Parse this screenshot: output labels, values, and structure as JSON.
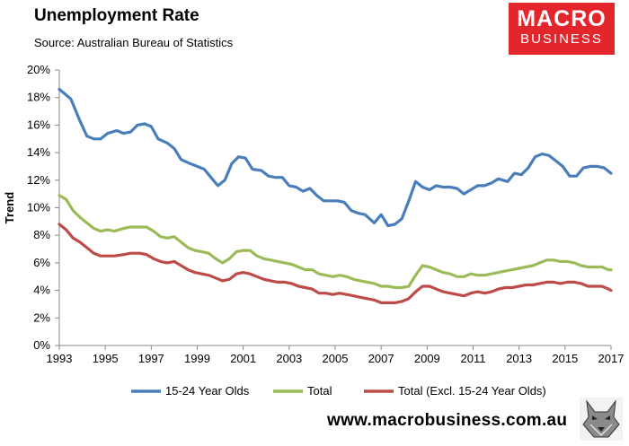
{
  "header": {
    "title": "Unemployment Rate",
    "source": "Source: Australian Bureau of Statistics"
  },
  "logo": {
    "line1": "MACRO",
    "line2": "BUSINESS"
  },
  "footer": {
    "url": "www.macrobusiness.com.au"
  },
  "colors": {
    "youth": "#4a7ebb",
    "total": "#9bbb59",
    "excl": "#be4b48",
    "logo_bg": "#e3262c"
  },
  "icons": {
    "mascot": "wolf-icon"
  },
  "chart_data": {
    "type": "line",
    "title": "Unemployment Rate",
    "ylabel": "Trend",
    "xlabel": "",
    "xlim": [
      1993,
      2017
    ],
    "ylim": [
      0,
      20
    ],
    "x_ticks": [
      "1993",
      "1995",
      "1997",
      "1999",
      "2001",
      "2003",
      "2005",
      "2007",
      "2009",
      "2011",
      "2013",
      "2015",
      "2017"
    ],
    "y_ticks": [
      "0%",
      "2%",
      "4%",
      "6%",
      "8%",
      "10%",
      "12%",
      "14%",
      "16%",
      "18%",
      "20%"
    ],
    "grid": false,
    "legend_position": "bottom",
    "series": [
      {
        "name": "15-24 Year Olds",
        "color": "#4a7ebb",
        "points": [
          [
            1993.0,
            18.6
          ],
          [
            1993.5,
            17.9
          ],
          [
            1993.9,
            16.3
          ],
          [
            1994.2,
            15.2
          ],
          [
            1994.5,
            15.0
          ],
          [
            1994.8,
            15.0
          ],
          [
            1995.1,
            15.4
          ],
          [
            1995.5,
            15.6
          ],
          [
            1995.8,
            15.4
          ],
          [
            1996.1,
            15.5
          ],
          [
            1996.4,
            16.0
          ],
          [
            1996.7,
            16.1
          ],
          [
            1997.0,
            15.9
          ],
          [
            1997.3,
            15.0
          ],
          [
            1997.7,
            14.7
          ],
          [
            1998.0,
            14.3
          ],
          [
            1998.3,
            13.5
          ],
          [
            1998.7,
            13.2
          ],
          [
            1999.0,
            13.0
          ],
          [
            1999.3,
            12.8
          ],
          [
            1999.6,
            12.2
          ],
          [
            1999.9,
            11.6
          ],
          [
            2000.2,
            12.0
          ],
          [
            2000.5,
            13.2
          ],
          [
            2000.8,
            13.7
          ],
          [
            2001.1,
            13.6
          ],
          [
            2001.4,
            12.8
          ],
          [
            2001.8,
            12.7
          ],
          [
            2002.1,
            12.3
          ],
          [
            2002.4,
            12.2
          ],
          [
            2002.7,
            12.2
          ],
          [
            2003.0,
            11.6
          ],
          [
            2003.3,
            11.5
          ],
          [
            2003.6,
            11.2
          ],
          [
            2003.9,
            11.4
          ],
          [
            2004.2,
            10.9
          ],
          [
            2004.5,
            10.5
          ],
          [
            2004.8,
            10.5
          ],
          [
            2005.1,
            10.5
          ],
          [
            2005.4,
            10.4
          ],
          [
            2005.7,
            9.8
          ],
          [
            2006.0,
            9.6
          ],
          [
            2006.3,
            9.5
          ],
          [
            2006.7,
            8.9
          ],
          [
            2007.0,
            9.5
          ],
          [
            2007.3,
            8.7
          ],
          [
            2007.6,
            8.8
          ],
          [
            2007.9,
            9.2
          ],
          [
            2008.2,
            10.5
          ],
          [
            2008.5,
            11.9
          ],
          [
            2008.8,
            11.5
          ],
          [
            2009.1,
            11.3
          ],
          [
            2009.4,
            11.6
          ],
          [
            2009.7,
            11.5
          ],
          [
            2010.0,
            11.5
          ],
          [
            2010.3,
            11.4
          ],
          [
            2010.6,
            11.0
          ],
          [
            2010.9,
            11.3
          ],
          [
            2011.2,
            11.6
          ],
          [
            2011.5,
            11.6
          ],
          [
            2011.8,
            11.8
          ],
          [
            2012.1,
            12.1
          ],
          [
            2012.5,
            11.9
          ],
          [
            2012.8,
            12.5
          ],
          [
            2013.1,
            12.4
          ],
          [
            2013.4,
            12.9
          ],
          [
            2013.7,
            13.7
          ],
          [
            2014.0,
            13.9
          ],
          [
            2014.3,
            13.8
          ],
          [
            2014.6,
            13.4
          ],
          [
            2014.9,
            13.0
          ],
          [
            2015.2,
            12.3
          ],
          [
            2015.5,
            12.3
          ],
          [
            2015.8,
            12.9
          ],
          [
            2016.1,
            13.0
          ],
          [
            2016.4,
            13.0
          ],
          [
            2016.7,
            12.9
          ],
          [
            2017.0,
            12.5
          ]
        ]
      },
      {
        "name": "Total",
        "color": "#9bbb59",
        "points": [
          [
            1993.0,
            10.9
          ],
          [
            1993.3,
            10.6
          ],
          [
            1993.6,
            9.8
          ],
          [
            1993.9,
            9.3
          ],
          [
            1994.2,
            8.9
          ],
          [
            1994.5,
            8.5
          ],
          [
            1994.8,
            8.3
          ],
          [
            1995.1,
            8.4
          ],
          [
            1995.4,
            8.3
          ],
          [
            1995.8,
            8.5
          ],
          [
            1996.1,
            8.6
          ],
          [
            1996.5,
            8.6
          ],
          [
            1996.8,
            8.6
          ],
          [
            1997.1,
            8.3
          ],
          [
            1997.4,
            7.9
          ],
          [
            1997.7,
            7.8
          ],
          [
            1998.0,
            7.9
          ],
          [
            1998.3,
            7.5
          ],
          [
            1998.6,
            7.1
          ],
          [
            1998.9,
            6.9
          ],
          [
            1999.2,
            6.8
          ],
          [
            1999.5,
            6.7
          ],
          [
            1999.8,
            6.3
          ],
          [
            2000.1,
            6.0
          ],
          [
            2000.4,
            6.3
          ],
          [
            2000.7,
            6.8
          ],
          [
            2001.0,
            6.9
          ],
          [
            2001.3,
            6.9
          ],
          [
            2001.6,
            6.5
          ],
          [
            2001.9,
            6.3
          ],
          [
            2002.2,
            6.2
          ],
          [
            2002.5,
            6.1
          ],
          [
            2002.8,
            6.0
          ],
          [
            2003.1,
            5.9
          ],
          [
            2003.4,
            5.7
          ],
          [
            2003.7,
            5.5
          ],
          [
            2004.0,
            5.5
          ],
          [
            2004.3,
            5.2
          ],
          [
            2004.6,
            5.1
          ],
          [
            2004.9,
            5.0
          ],
          [
            2005.2,
            5.1
          ],
          [
            2005.5,
            5.0
          ],
          [
            2005.8,
            4.8
          ],
          [
            2006.1,
            4.7
          ],
          [
            2006.4,
            4.6
          ],
          [
            2006.7,
            4.5
          ],
          [
            2007.0,
            4.3
          ],
          [
            2007.3,
            4.3
          ],
          [
            2007.6,
            4.2
          ],
          [
            2007.9,
            4.2
          ],
          [
            2008.2,
            4.3
          ],
          [
            2008.5,
            5.1
          ],
          [
            2008.8,
            5.8
          ],
          [
            2009.1,
            5.7
          ],
          [
            2009.4,
            5.5
          ],
          [
            2009.7,
            5.3
          ],
          [
            2010.0,
            5.2
          ],
          [
            2010.3,
            5.0
          ],
          [
            2010.6,
            5.0
          ],
          [
            2010.9,
            5.2
          ],
          [
            2011.2,
            5.1
          ],
          [
            2011.5,
            5.1
          ],
          [
            2011.8,
            5.2
          ],
          [
            2012.1,
            5.3
          ],
          [
            2012.4,
            5.4
          ],
          [
            2012.7,
            5.5
          ],
          [
            2013.0,
            5.6
          ],
          [
            2013.3,
            5.7
          ],
          [
            2013.6,
            5.8
          ],
          [
            2013.9,
            6.0
          ],
          [
            2014.2,
            6.2
          ],
          [
            2014.5,
            6.2
          ],
          [
            2014.8,
            6.1
          ],
          [
            2015.1,
            6.1
          ],
          [
            2015.4,
            6.0
          ],
          [
            2015.7,
            5.8
          ],
          [
            2016.0,
            5.7
          ],
          [
            2016.3,
            5.7
          ],
          [
            2016.6,
            5.7
          ],
          [
            2016.9,
            5.5
          ],
          [
            2017.0,
            5.5
          ]
        ]
      },
      {
        "name": "Total (Excl. 15-24 Year Olds)",
        "color": "#be4b48",
        "points": [
          [
            1993.0,
            8.8
          ],
          [
            1993.3,
            8.4
          ],
          [
            1993.6,
            7.8
          ],
          [
            1993.9,
            7.5
          ],
          [
            1994.2,
            7.1
          ],
          [
            1994.5,
            6.7
          ],
          [
            1994.8,
            6.5
          ],
          [
            1995.1,
            6.5
          ],
          [
            1995.4,
            6.5
          ],
          [
            1995.8,
            6.6
          ],
          [
            1996.1,
            6.7
          ],
          [
            1996.5,
            6.7
          ],
          [
            1996.8,
            6.6
          ],
          [
            1997.1,
            6.3
          ],
          [
            1997.4,
            6.1
          ],
          [
            1997.7,
            6.0
          ],
          [
            1998.0,
            6.1
          ],
          [
            1998.3,
            5.8
          ],
          [
            1998.6,
            5.5
          ],
          [
            1998.9,
            5.3
          ],
          [
            1999.2,
            5.2
          ],
          [
            1999.5,
            5.1
          ],
          [
            1999.8,
            4.9
          ],
          [
            2000.1,
            4.7
          ],
          [
            2000.4,
            4.8
          ],
          [
            2000.7,
            5.2
          ],
          [
            2001.0,
            5.3
          ],
          [
            2001.3,
            5.2
          ],
          [
            2001.6,
            5.0
          ],
          [
            2001.9,
            4.8
          ],
          [
            2002.2,
            4.7
          ],
          [
            2002.5,
            4.6
          ],
          [
            2002.8,
            4.6
          ],
          [
            2003.1,
            4.5
          ],
          [
            2003.4,
            4.3
          ],
          [
            2003.7,
            4.2
          ],
          [
            2004.0,
            4.1
          ],
          [
            2004.3,
            3.8
          ],
          [
            2004.6,
            3.8
          ],
          [
            2004.9,
            3.7
          ],
          [
            2005.2,
            3.8
          ],
          [
            2005.5,
            3.7
          ],
          [
            2005.8,
            3.6
          ],
          [
            2006.1,
            3.5
          ],
          [
            2006.4,
            3.4
          ],
          [
            2006.7,
            3.3
          ],
          [
            2007.0,
            3.1
          ],
          [
            2007.3,
            3.1
          ],
          [
            2007.6,
            3.1
          ],
          [
            2007.9,
            3.2
          ],
          [
            2008.2,
            3.4
          ],
          [
            2008.5,
            3.9
          ],
          [
            2008.8,
            4.3
          ],
          [
            2009.1,
            4.3
          ],
          [
            2009.4,
            4.1
          ],
          [
            2009.7,
            3.9
          ],
          [
            2010.0,
            3.8
          ],
          [
            2010.3,
            3.7
          ],
          [
            2010.6,
            3.6
          ],
          [
            2010.9,
            3.8
          ],
          [
            2011.2,
            3.9
          ],
          [
            2011.5,
            3.8
          ],
          [
            2011.8,
            3.9
          ],
          [
            2012.1,
            4.1
          ],
          [
            2012.4,
            4.2
          ],
          [
            2012.7,
            4.2
          ],
          [
            2013.0,
            4.3
          ],
          [
            2013.3,
            4.4
          ],
          [
            2013.6,
            4.4
          ],
          [
            2013.9,
            4.5
          ],
          [
            2014.2,
            4.6
          ],
          [
            2014.5,
            4.6
          ],
          [
            2014.8,
            4.5
          ],
          [
            2015.1,
            4.6
          ],
          [
            2015.4,
            4.6
          ],
          [
            2015.7,
            4.5
          ],
          [
            2016.0,
            4.3
          ],
          [
            2016.3,
            4.3
          ],
          [
            2016.6,
            4.3
          ],
          [
            2016.9,
            4.1
          ],
          [
            2017.0,
            4.0
          ]
        ]
      }
    ]
  }
}
